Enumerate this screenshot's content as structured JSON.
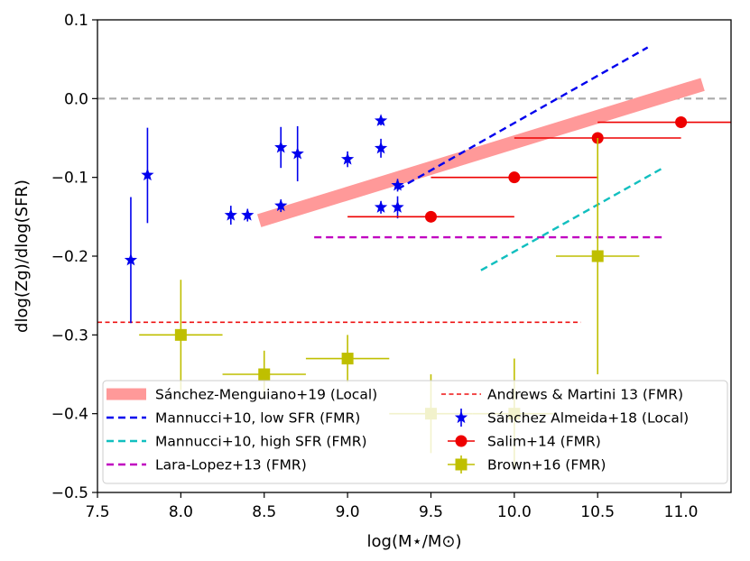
{
  "chart_data": {
    "type": "scatter",
    "xlabel": "log(M⋆/M⊙)",
    "ylabel": "dlog(Zg)/dlog(SFR)",
    "xlim": [
      7.5,
      11.3
    ],
    "ylim": [
      -0.5,
      0.1
    ],
    "x_ticks": [
      "7.5",
      "8.0",
      "8.5",
      "9.0",
      "9.5",
      "10.0",
      "10.5",
      "11.0"
    ],
    "y_ticks": [
      "0.1",
      "0.0",
      "−0.1",
      "−0.2",
      "−0.3",
      "−0.4",
      "−0.5"
    ],
    "grid": false,
    "reference_line": {
      "y": 0.0,
      "color": "#aaaaaa",
      "style": "dashed"
    },
    "legend": {
      "placement": "lower-center",
      "columns": 2,
      "entries": [
        "Sánchez-Menguiano+19 (Local)",
        "Mannucci+10, low SFR (FMR)",
        "Mannucci+10, high SFR (FMR)",
        "Lara-Lopez+13 (FMR)",
        "Andrews & Martini 13 (FMR)",
        "Sánchez Almeida+18 (Local)",
        "Salim+14 (FMR)",
        "Brown+16 (FMR)"
      ]
    },
    "series": [
      {
        "name": "Sánchez-Menguiano+19 (Local)",
        "kind": "band",
        "color": "#ff9999",
        "x": [
          8.47,
          11.13
        ],
        "y": [
          -0.155,
          0.018
        ]
      },
      {
        "name": "Mannucci+10, low SFR (FMR)",
        "kind": "dashed-line",
        "color": "#0000ee",
        "x": [
          9.3,
          10.8
        ],
        "y": [
          -0.115,
          0.065
        ]
      },
      {
        "name": "Mannucci+10, high SFR (FMR)",
        "kind": "dashed-line",
        "color": "#11bfbf",
        "x": [
          9.8,
          10.9
        ],
        "y": [
          -0.218,
          -0.087
        ]
      },
      {
        "name": "Lara-Lopez+13 (FMR)",
        "kind": "dashed-line",
        "color": "#c000c0",
        "x": [
          8.8,
          10.9
        ],
        "y": [
          -0.176,
          -0.176
        ]
      },
      {
        "name": "Andrews & Martini 13 (FMR)",
        "kind": "dashed-line",
        "color": "#ee1111",
        "x": [
          7.5,
          10.4
        ],
        "y": [
          -0.284,
          -0.284
        ]
      },
      {
        "name": "Sánchez Almeida+18 (Local)",
        "kind": "points-yerr",
        "marker": "star",
        "color": "#0000ee",
        "points": [
          {
            "x": 7.7,
            "y": -0.205,
            "ylo": -0.285,
            "yhi": -0.125
          },
          {
            "x": 7.8,
            "y": -0.097,
            "ylo": -0.158,
            "yhi": -0.037
          },
          {
            "x": 8.3,
            "y": -0.148,
            "ylo": -0.16,
            "yhi": -0.136
          },
          {
            "x": 8.4,
            "y": -0.148,
            "ylo": -0.156,
            "yhi": -0.14
          },
          {
            "x": 8.6,
            "y": -0.062,
            "ylo": -0.088,
            "yhi": -0.036
          },
          {
            "x": 8.6,
            "y": -0.136,
            "ylo": -0.144,
            "yhi": -0.128
          },
          {
            "x": 8.7,
            "y": -0.07,
            "ylo": -0.105,
            "yhi": -0.035
          },
          {
            "x": 9.0,
            "y": -0.077,
            "ylo": -0.087,
            "yhi": -0.067
          },
          {
            "x": 9.2,
            "y": -0.028,
            "ylo": -0.034,
            "yhi": -0.022
          },
          {
            "x": 9.2,
            "y": -0.063,
            "ylo": -0.075,
            "yhi": -0.051
          },
          {
            "x": 9.2,
            "y": -0.138,
            "ylo": -0.146,
            "yhi": -0.13
          },
          {
            "x": 9.3,
            "y": -0.11,
            "ylo": -0.118,
            "yhi": -0.102
          },
          {
            "x": 9.3,
            "y": -0.138,
            "ylo": -0.152,
            "yhi": -0.124
          }
        ]
      },
      {
        "name": "Salim+14 (FMR)",
        "kind": "points-xerr",
        "marker": "circle",
        "color": "#ee0000",
        "points": [
          {
            "x": 9.5,
            "y": -0.15,
            "xlo": 9.0,
            "xhi": 10.0
          },
          {
            "x": 10.0,
            "y": -0.1,
            "xlo": 9.5,
            "xhi": 10.5
          },
          {
            "x": 10.5,
            "y": -0.05,
            "xlo": 10.0,
            "xhi": 11.0
          },
          {
            "x": 11.0,
            "y": -0.03,
            "xlo": 10.5,
            "xhi": 11.5
          }
        ]
      },
      {
        "name": "Brown+16 (FMR)",
        "kind": "points-xyerr",
        "marker": "square",
        "color": "#bfbf00",
        "points": [
          {
            "x": 8.0,
            "y": -0.3,
            "xlo": 7.75,
            "xhi": 8.25,
            "ylo": -0.37,
            "yhi": -0.23
          },
          {
            "x": 8.5,
            "y": -0.35,
            "xlo": 8.25,
            "xhi": 8.75,
            "ylo": -0.38,
            "yhi": -0.32
          },
          {
            "x": 9.0,
            "y": -0.33,
            "xlo": 8.75,
            "xhi": 9.25,
            "ylo": -0.36,
            "yhi": -0.3
          },
          {
            "x": 9.5,
            "y": -0.4,
            "xlo": 9.25,
            "xhi": 9.75,
            "ylo": -0.45,
            "yhi": -0.35
          },
          {
            "x": 10.0,
            "y": -0.4,
            "xlo": 9.75,
            "xhi": 10.25,
            "ylo": -0.47,
            "yhi": -0.33
          },
          {
            "x": 10.5,
            "y": -0.2,
            "xlo": 10.25,
            "xhi": 10.75,
            "ylo": -0.35,
            "yhi": -0.05
          }
        ]
      }
    ]
  }
}
